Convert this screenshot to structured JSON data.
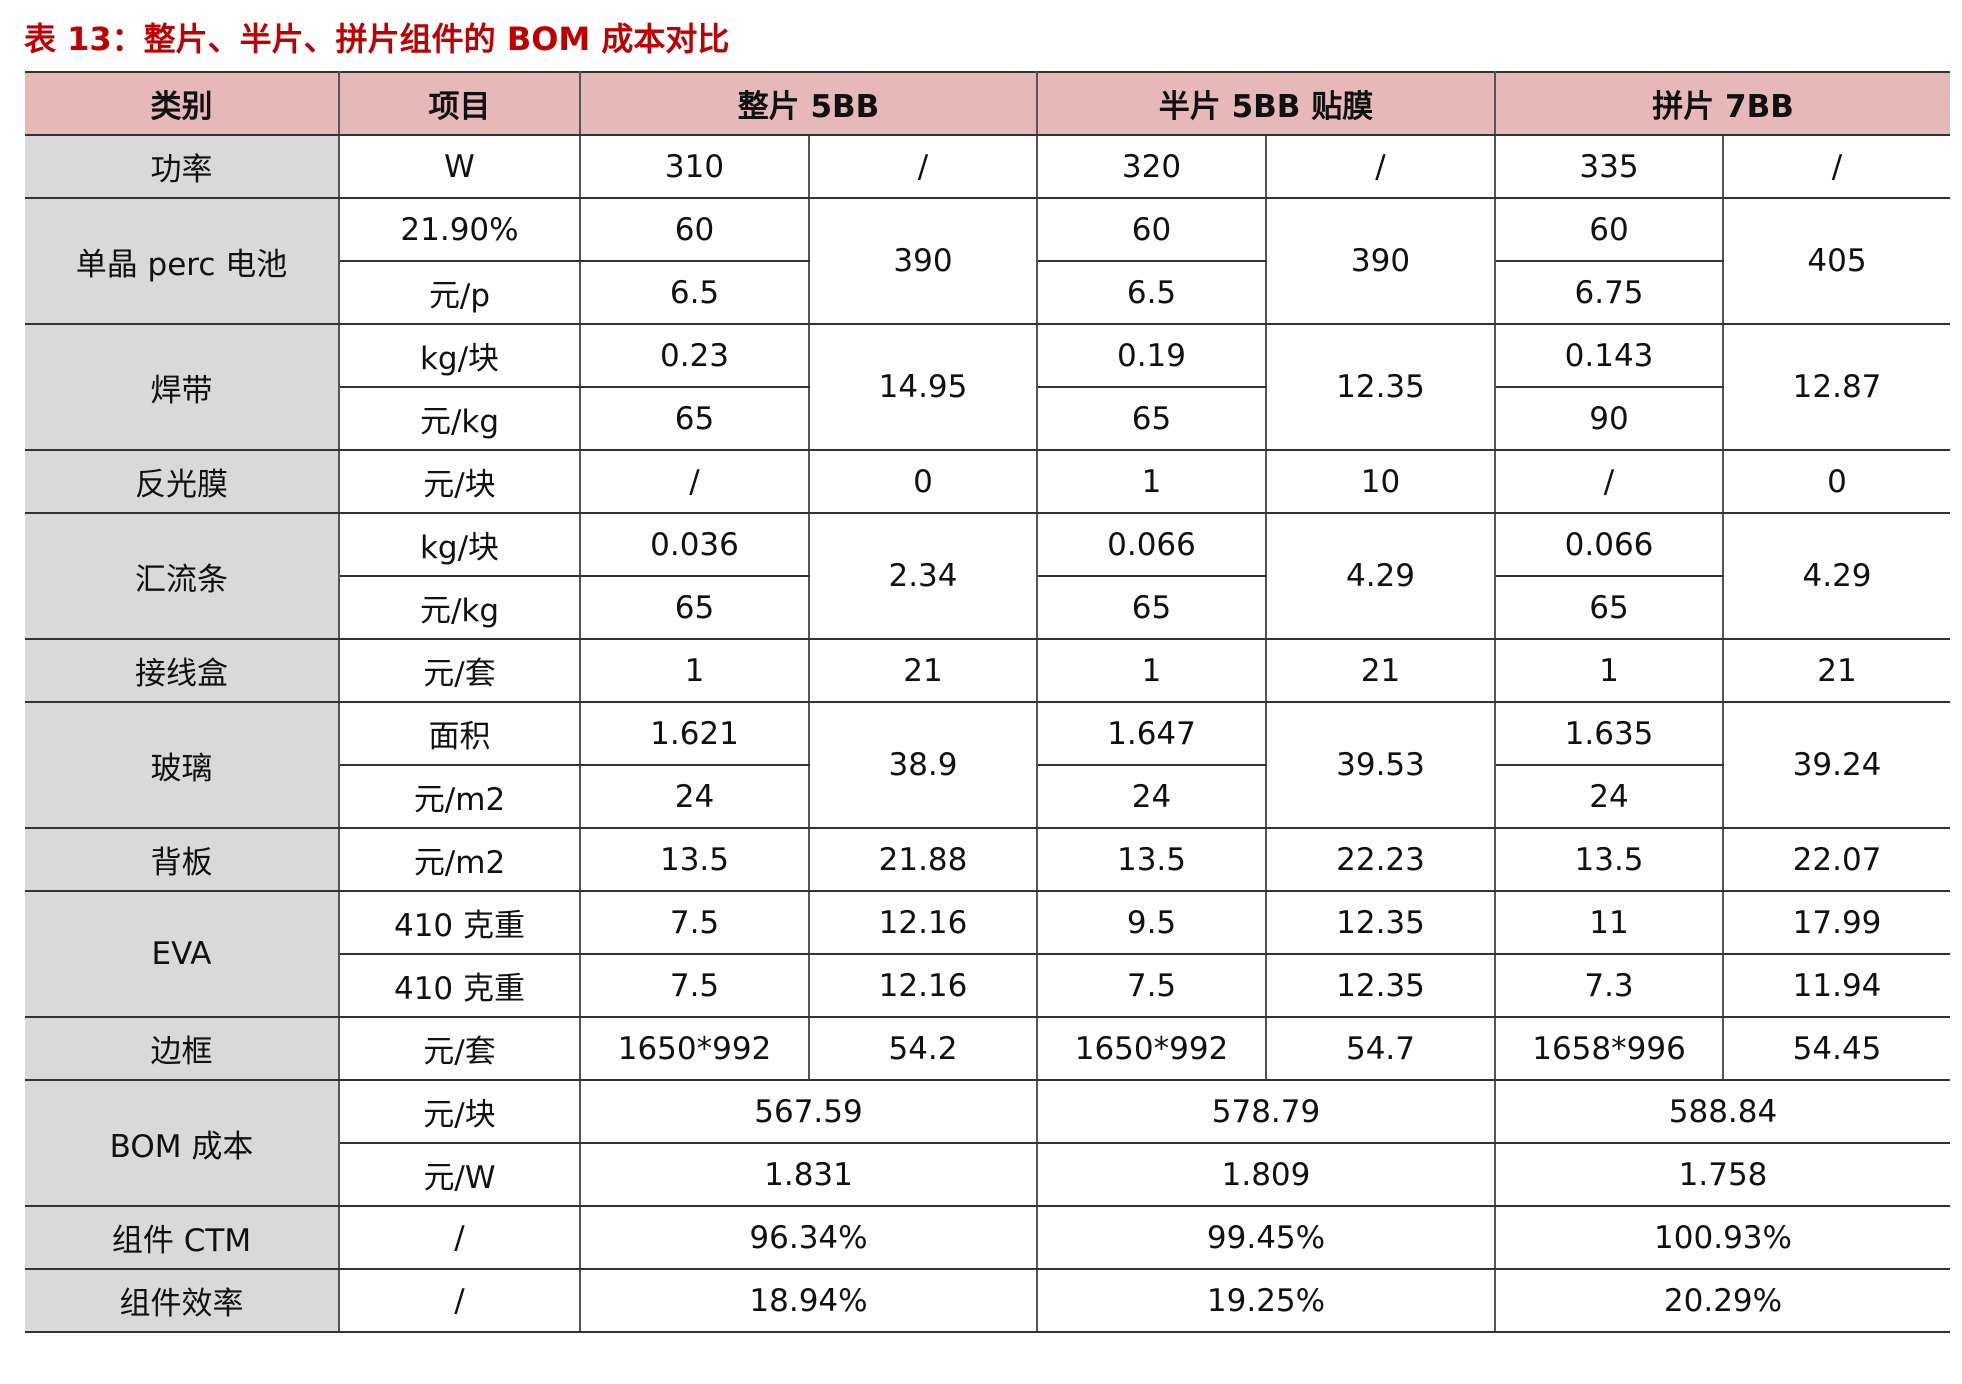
{
  "title": "表 13：整片、半片、拼片组件的 BOM 成本对比",
  "table": {
    "header": [
      "类别",
      "项目",
      "整片 5BB",
      "半片 5BB 贴膜",
      "拼片 7BB"
    ],
    "groups": [
      {
        "category": "功率",
        "rows": [
          {
            "item": "W",
            "values": [
              "310",
              "/",
              "320",
              "/",
              "335",
              "/"
            ]
          }
        ]
      },
      {
        "category": "单晶 perc 电池",
        "rows": [
          {
            "item": "21.90%",
            "values": [
              "60",
              "60",
              "60"
            ]
          },
          {
            "item": "元/p",
            "values": [
              "6.5",
              "6.5",
              "6.75"
            ]
          }
        ],
        "totals": [
          "390",
          "390",
          "405"
        ]
      },
      {
        "category": "焊带",
        "rows": [
          {
            "item": "kg/块",
            "values": [
              "0.23",
              "0.19",
              "0.143"
            ]
          },
          {
            "item": "元/kg",
            "values": [
              "65",
              "65",
              "90"
            ]
          }
        ],
        "totals": [
          "14.95",
          "12.35",
          "12.87"
        ]
      },
      {
        "category": "反光膜",
        "rows": [
          {
            "item": "元/块",
            "values": [
              "/",
              "0",
              "1",
              "10",
              "/",
              "0"
            ]
          }
        ]
      },
      {
        "category": "汇流条",
        "rows": [
          {
            "item": "kg/块",
            "values": [
              "0.036",
              "0.066",
              "0.066"
            ]
          },
          {
            "item": "元/kg",
            "values": [
              "65",
              "65",
              "65"
            ]
          }
        ],
        "totals": [
          "2.34",
          "4.29",
          "4.29"
        ]
      },
      {
        "category": "接线盒",
        "rows": [
          {
            "item": "元/套",
            "values": [
              "1",
              "21",
              "1",
              "21",
              "1",
              "21"
            ]
          }
        ]
      },
      {
        "category": "玻璃",
        "rows": [
          {
            "item": "面积",
            "values": [
              "1.621",
              "1.647",
              "1.635"
            ]
          },
          {
            "item": "元/m2",
            "values": [
              "24",
              "24",
              "24"
            ]
          }
        ],
        "totals": [
          "38.9",
          "39.53",
          "39.24"
        ]
      },
      {
        "category": "背板",
        "rows": [
          {
            "item": "元/m2",
            "values": [
              "13.5",
              "21.88",
              "13.5",
              "22.23",
              "13.5",
              "22.07"
            ]
          }
        ]
      },
      {
        "category": "EVA",
        "rows": [
          {
            "item": "410 克重",
            "values": [
              "7.5",
              "12.16",
              "9.5",
              "12.35",
              "11",
              "17.99"
            ]
          },
          {
            "item": "410 克重",
            "values": [
              "7.5",
              "12.16",
              "7.5",
              "12.35",
              "7.3",
              "11.94"
            ]
          }
        ]
      },
      {
        "category": "边框",
        "rows": [
          {
            "item": "元/套",
            "values": [
              "1650*992",
              "54.2",
              "1650*992",
              "54.7",
              "1658*996",
              "54.45"
            ]
          }
        ]
      },
      {
        "category": "BOM 成本",
        "rows": [
          {
            "item": "元/块",
            "values": [
              "567.59",
              "578.79",
              "588.84"
            ]
          },
          {
            "item": "元/W",
            "values": [
              "1.831",
              "1.809",
              "1.758"
            ]
          }
        ]
      },
      {
        "category": "组件 CTM",
        "rows": [
          {
            "item": "/",
            "values": [
              "96.34%",
              "99.45%",
              "100.93%"
            ]
          }
        ]
      },
      {
        "category": "组件效率",
        "rows": [
          {
            "item": "/",
            "values": [
              "18.94%",
              "19.25%",
              "20.29%"
            ]
          }
        ]
      }
    ]
  }
}
